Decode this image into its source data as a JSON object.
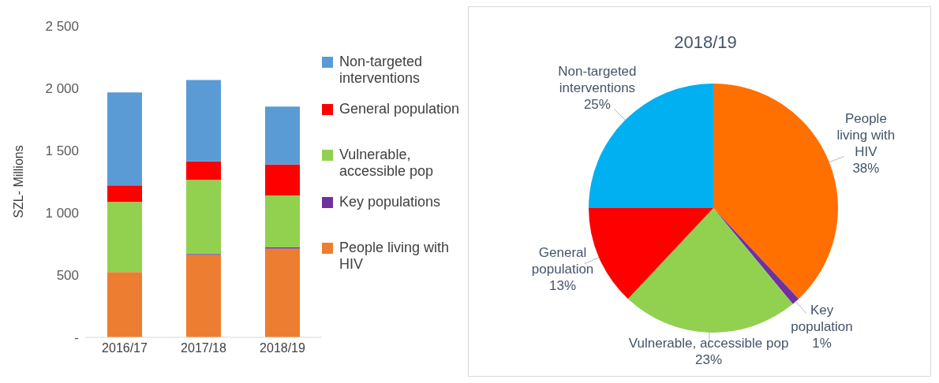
{
  "chart_data": [
    {
      "type": "bar",
      "ylabel": "SZL- Millions",
      "categories": [
        "2016/17",
        "2017/18",
        "2018/19"
      ],
      "stacked": true,
      "legend": "right",
      "grid": false,
      "ylim": [
        0,
        2500
      ],
      "yticks": [
        {
          "value": 0,
          "label": "-"
        },
        500,
        {
          "value": 1000,
          "label": "1 000"
        },
        {
          "value": 1500,
          "label": "1 500"
        },
        {
          "value": 2000,
          "label": "2 000"
        },
        {
          "value": 2500,
          "label": "2 500"
        }
      ],
      "series": [
        {
          "name": "People living with HIV",
          "color": "#ed7d31",
          "values": [
            523,
            661,
            712
          ]
        },
        {
          "name": "Key populations",
          "color": "#7030a0",
          "values": [
            null,
            9,
            10
          ]
        },
        {
          "name": "Vulnerable, accessible pop",
          "color": "#92d050",
          "values": [
            564,
            594,
            417
          ]
        },
        {
          "name": "General population",
          "color": "#ff0000",
          "values": [
            133,
            149,
            249
          ]
        },
        {
          "name": "Non-targeted interventions",
          "color": "#5b9bd5",
          "values": [
            746,
            654,
            465
          ]
        }
      ]
    },
    {
      "type": "pie",
      "title": "2018/19",
      "value_labels": [
        "38%",
        "1%",
        "23%",
        "13%",
        "25%"
      ],
      "categories": [
        "People living with HIV",
        "Key population",
        "Vulnerable, accessible pop",
        "General population",
        "Non-targeted interventions"
      ],
      "values": [
        38,
        1,
        23,
        13,
        25
      ],
      "colors": [
        "#ff7000",
        "#7030a0",
        "#92d050",
        "#ff0000",
        "#00b0f0"
      ]
    }
  ]
}
